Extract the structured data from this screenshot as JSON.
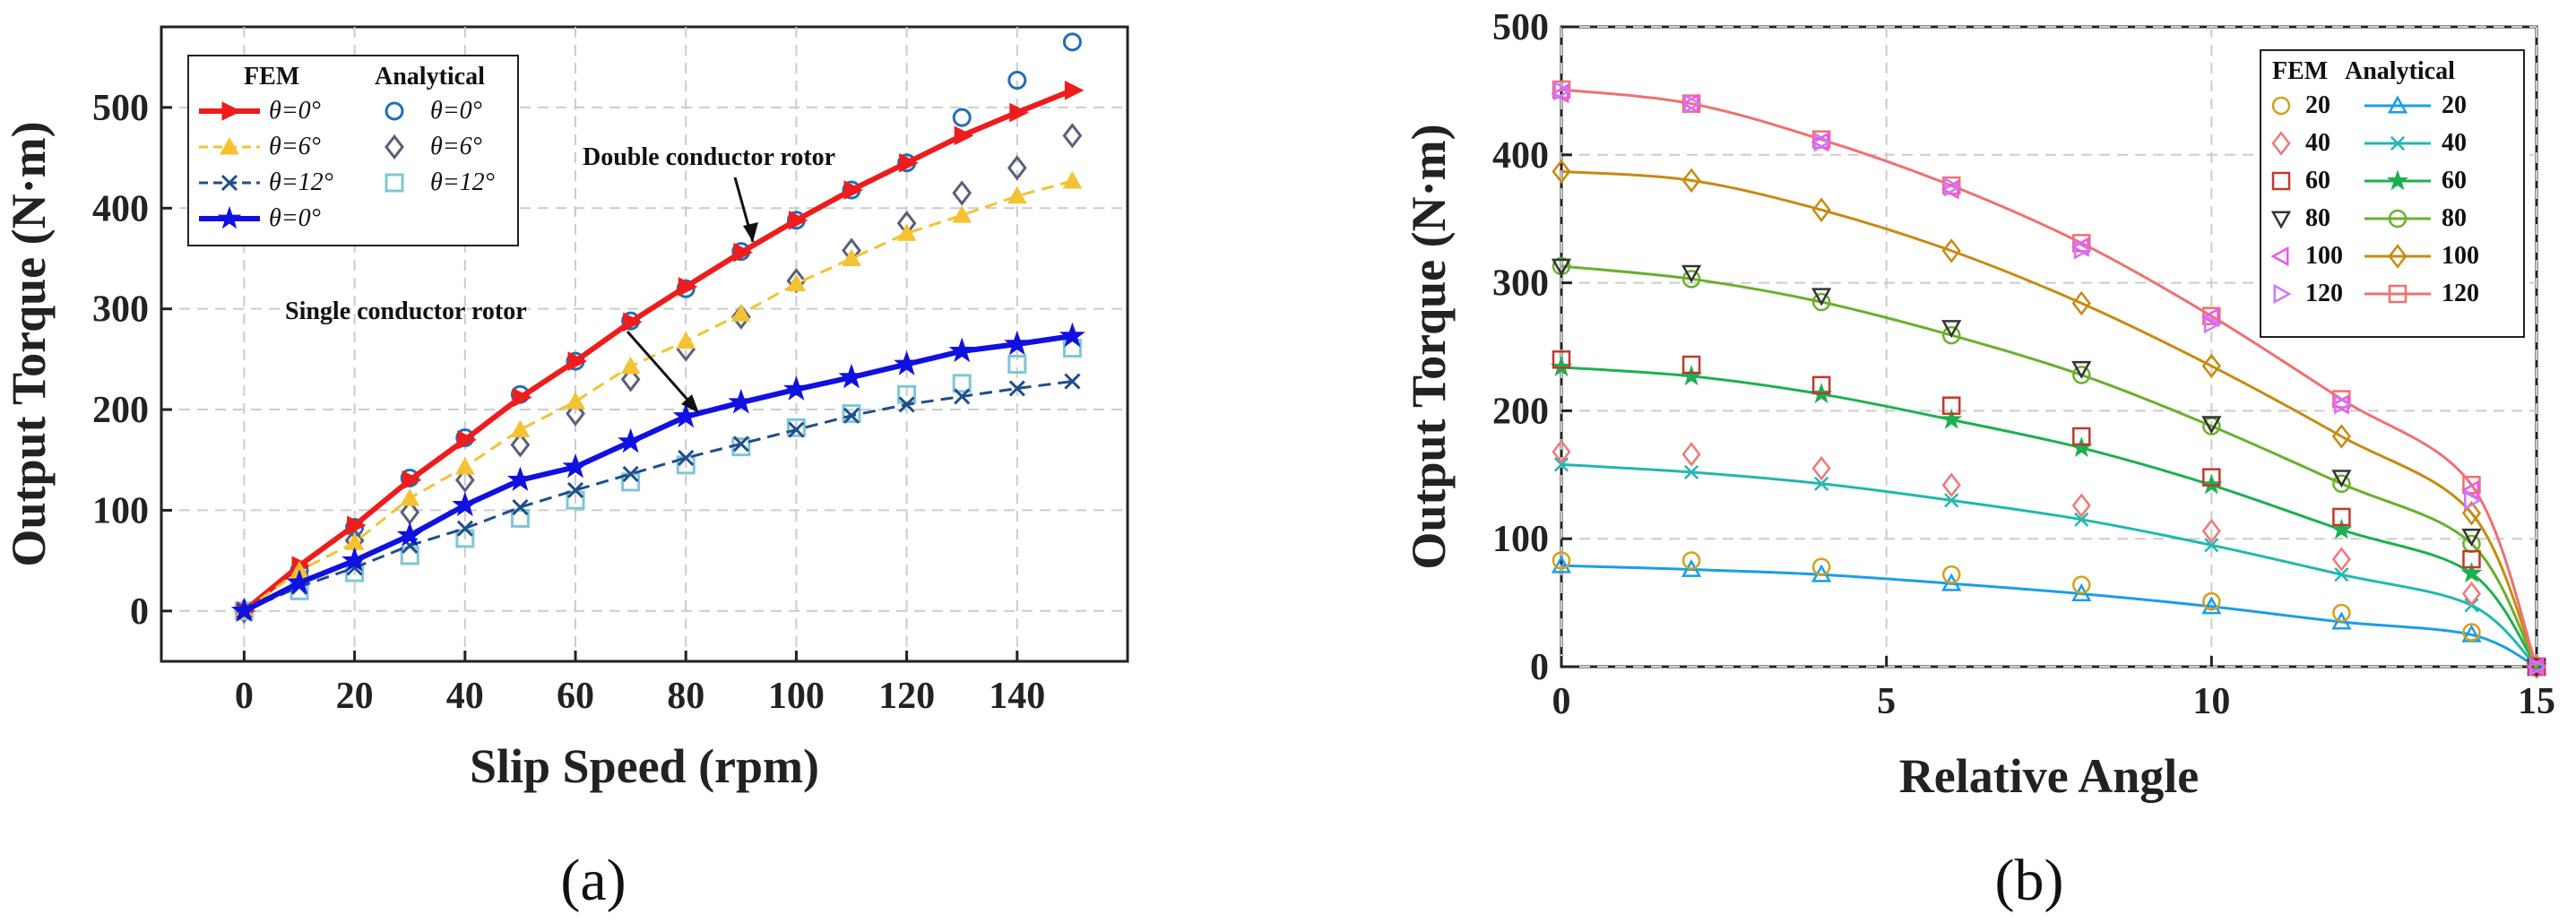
{
  "figure": {
    "label_a": "(a)",
    "label_b": "(b)"
  },
  "chart_data": [
    {
      "type": "line",
      "panel": "a",
      "xlabel": "Slip Speed (rpm)",
      "ylabel": "Output Torque (N·m)",
      "xlim": [
        -15,
        160
      ],
      "ylim": [
        -50,
        580
      ],
      "xticks": [
        0,
        20,
        40,
        60,
        80,
        100,
        120,
        140
      ],
      "yticks": [
        0,
        100,
        200,
        300,
        400,
        500
      ],
      "grid": true,
      "legend_position": "top-left",
      "legend_headers": [
        "FEM",
        "Analytical"
      ],
      "annotations": [
        {
          "text": "Double conductor rotor"
        },
        {
          "text": "Single conductor rotor"
        }
      ],
      "series": [
        {
          "group": "FEM",
          "name": "θ=0°",
          "color": "#ee1c1c",
          "marker": "triangle-right",
          "style": "solid-thick",
          "x": [
            0,
            10,
            20,
            30,
            40,
            50,
            60,
            70,
            80,
            90,
            100,
            110,
            120,
            130,
            140,
            150
          ],
          "y": [
            0,
            45,
            85,
            130,
            170,
            212,
            248,
            287,
            322,
            356,
            388,
            418,
            445,
            472,
            495,
            517
          ]
        },
        {
          "group": "FEM",
          "name": "θ=6°",
          "color": "#f5c233",
          "marker": "triangle-up",
          "style": "dashed",
          "x": [
            0,
            10,
            20,
            30,
            40,
            50,
            60,
            70,
            80,
            90,
            100,
            110,
            120,
            130,
            140,
            150
          ],
          "y": [
            0,
            40,
            68,
            112,
            143,
            180,
            208,
            243,
            268,
            295,
            325,
            350,
            375,
            393,
            412,
            427
          ]
        },
        {
          "group": "FEM",
          "name": "θ=12°",
          "color": "#1f4e8c",
          "marker": "x",
          "style": "dashed",
          "x": [
            0,
            10,
            20,
            30,
            40,
            50,
            60,
            70,
            80,
            90,
            100,
            110,
            120,
            130,
            140,
            150
          ],
          "y": [
            0,
            24,
            43,
            65,
            82,
            103,
            120,
            136,
            152,
            166,
            180,
            194,
            205,
            213,
            221,
            228
          ]
        },
        {
          "group": "FEM",
          "name": "θ=0°",
          "color": "#1010e0",
          "marker": "star",
          "style": "solid-thick",
          "x": [
            0,
            10,
            20,
            30,
            40,
            50,
            60,
            70,
            80,
            90,
            100,
            110,
            120,
            130,
            140,
            150
          ],
          "y": [
            0,
            28,
            50,
            75,
            105,
            130,
            143,
            168,
            193,
            207,
            220,
            232,
            245,
            258,
            265,
            273
          ]
        },
        {
          "group": "Analytical",
          "name": "θ=0°",
          "color": "#1f6fb8",
          "marker": "circle",
          "x": [
            0,
            10,
            20,
            30,
            40,
            50,
            60,
            70,
            80,
            90,
            100,
            110,
            120,
            130,
            140,
            150
          ],
          "y": [
            0,
            40,
            83,
            132,
            172,
            215,
            248,
            288,
            320,
            357,
            388,
            418,
            445,
            490,
            527,
            565
          ]
        },
        {
          "group": "Analytical",
          "name": "θ=6°",
          "color": "#5a5f7a",
          "marker": "diamond",
          "x": [
            0,
            10,
            20,
            30,
            40,
            50,
            60,
            70,
            80,
            90,
            100,
            110,
            120,
            130,
            140,
            150
          ],
          "y": [
            0,
            35,
            70,
            98,
            130,
            165,
            196,
            230,
            260,
            292,
            328,
            358,
            385,
            415,
            440,
            472
          ]
        },
        {
          "group": "Analytical",
          "name": "θ=12°",
          "color": "#7fc6d6",
          "marker": "square",
          "x": [
            0,
            10,
            20,
            30,
            40,
            50,
            60,
            70,
            80,
            90,
            100,
            110,
            120,
            130,
            140,
            150
          ],
          "y": [
            0,
            20,
            38,
            55,
            72,
            92,
            110,
            128,
            145,
            163,
            182,
            196,
            215,
            226,
            245,
            261
          ]
        }
      ]
    },
    {
      "type": "line",
      "panel": "b",
      "xlabel": "Relative Angle",
      "ylabel": "Output Torque (N·m)",
      "xlim": [
        0,
        15
      ],
      "ylim": [
        0,
        500
      ],
      "xticks": [
        0,
        5,
        10,
        15
      ],
      "yticks": [
        0,
        100,
        200,
        300,
        400,
        500
      ],
      "grid": true,
      "legend_position": "top-right",
      "legend_headers": [
        "FEM",
        "Analytical"
      ],
      "fem_series": [
        {
          "name": "20",
          "color": "#d4a017",
          "marker": "circle",
          "x": [
            0,
            2,
            4,
            6,
            8,
            10,
            12,
            14,
            15
          ],
          "y": [
            83,
            83,
            78,
            72,
            64,
            51,
            42,
            27,
            0
          ]
        },
        {
          "name": "40",
          "color": "#f07878",
          "marker": "diamond",
          "x": [
            0,
            2,
            4,
            6,
            8,
            10,
            12,
            14,
            15
          ],
          "y": [
            168,
            166,
            155,
            142,
            126,
            106,
            84,
            57,
            0
          ]
        },
        {
          "name": "60",
          "color": "#c0392b",
          "marker": "square",
          "x": [
            0,
            2,
            4,
            6,
            8,
            10,
            12,
            14,
            15
          ],
          "y": [
            240,
            236,
            220,
            204,
            180,
            148,
            117,
            84,
            0
          ]
        },
        {
          "name": "80",
          "color": "#333333",
          "marker": "triangle-down",
          "x": [
            0,
            2,
            4,
            6,
            8,
            10,
            12,
            14,
            15
          ],
          "y": [
            313,
            308,
            290,
            265,
            233,
            190,
            148,
            102,
            0
          ]
        },
        {
          "name": "100",
          "color": "#ee55ee",
          "marker": "triangle-left",
          "x": [
            0,
            2,
            4,
            6,
            8,
            10,
            12,
            14,
            15
          ],
          "y": [
            448,
            440,
            410,
            373,
            328,
            273,
            205,
            138,
            0
          ]
        },
        {
          "name": "120",
          "color": "#cc77ff",
          "marker": "triangle-right",
          "x": [
            0,
            2,
            4,
            6,
            8,
            10,
            12,
            14,
            15
          ],
          "y": [
            450,
            440,
            410,
            375,
            326,
            268,
            205,
            130,
            0
          ]
        }
      ],
      "analytical_series": [
        {
          "name": "20",
          "color": "#1a9ee8",
          "marker": "triangle-up",
          "x": [
            0,
            2,
            4,
            6,
            8,
            10,
            12,
            14,
            15
          ],
          "y": [
            79,
            76,
            72,
            65,
            57,
            47,
            35,
            25,
            0
          ]
        },
        {
          "name": "40",
          "color": "#20b8b0",
          "marker": "x",
          "x": [
            0,
            2,
            4,
            6,
            8,
            10,
            12,
            14,
            15
          ],
          "y": [
            158,
            152,
            143,
            130,
            115,
            95,
            72,
            48,
            0
          ]
        },
        {
          "name": "60",
          "color": "#1cb050",
          "marker": "star",
          "x": [
            0,
            2,
            4,
            6,
            8,
            10,
            12,
            14,
            15
          ],
          "y": [
            234,
            227,
            213,
            193,
            171,
            142,
            107,
            73,
            0
          ]
        },
        {
          "name": "80",
          "color": "#6ab02c",
          "marker": "circle",
          "x": [
            0,
            2,
            4,
            6,
            8,
            10,
            12,
            14,
            15
          ],
          "y": [
            313,
            303,
            285,
            259,
            228,
            188,
            143,
            96,
            0
          ]
        },
        {
          "name": "100",
          "color": "#c88a10",
          "marker": "diamond",
          "x": [
            0,
            2,
            4,
            6,
            8,
            10,
            12,
            14,
            15
          ],
          "y": [
            387,
            380,
            357,
            325,
            284,
            235,
            180,
            120,
            0
          ]
        },
        {
          "name": "120",
          "color": "#f07070",
          "marker": "square",
          "x": [
            0,
            2,
            4,
            6,
            8,
            10,
            12,
            14,
            15
          ],
          "y": [
            451,
            440,
            412,
            376,
            331,
            274,
            209,
            142,
            0
          ]
        }
      ]
    }
  ]
}
